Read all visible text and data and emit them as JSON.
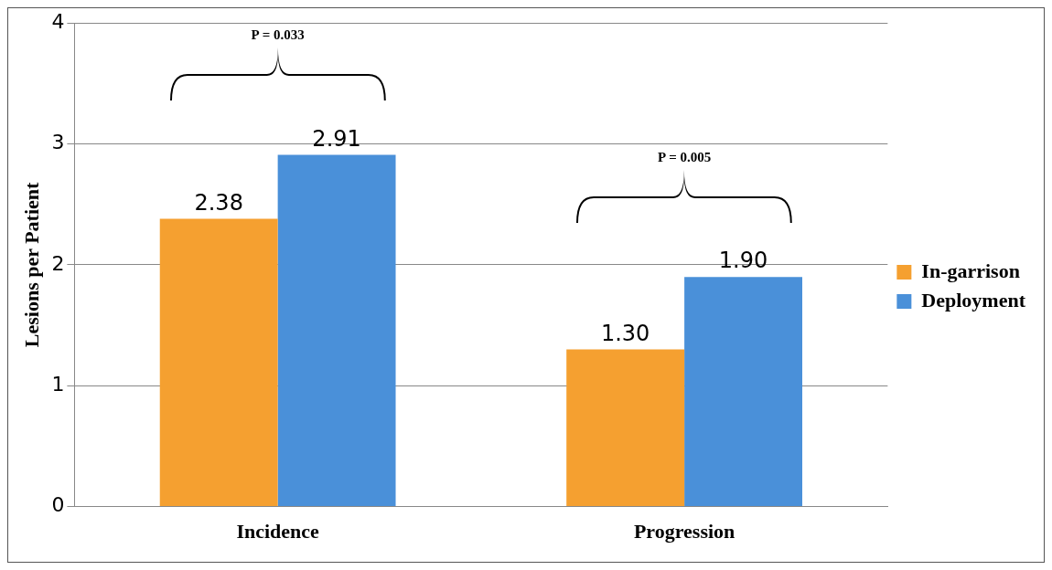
{
  "chart_data": {
    "type": "bar",
    "categories": [
      "Incidence",
      "Progression"
    ],
    "ylabel": "Lesions per Patient",
    "series": [
      {
        "name": "In-garrison",
        "color": "#f5a030",
        "values": [
          2.38,
          1.3
        ],
        "value_labels": [
          "2.38",
          "1.30"
        ]
      },
      {
        "name": "Deployment",
        "color": "#4a90d9",
        "values": [
          2.91,
          1.9
        ],
        "value_labels": [
          "2.91",
          "1.90"
        ]
      }
    ],
    "ylim": [
      0,
      4
    ],
    "yticks": [
      0,
      1,
      2,
      3,
      4
    ],
    "grid": "y",
    "legend": "right",
    "annotations": [
      "P = 0.033",
      "P = 0.005"
    ]
  }
}
